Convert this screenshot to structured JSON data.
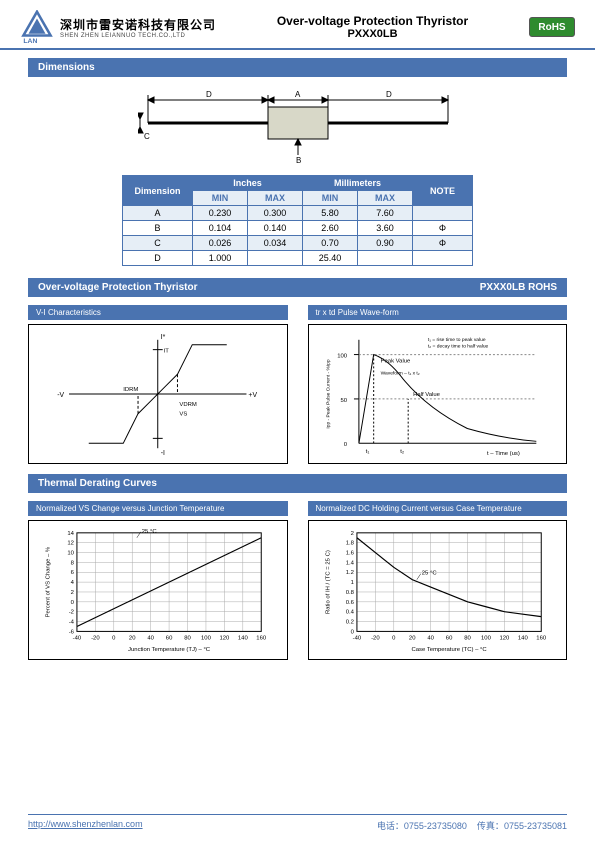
{
  "header": {
    "company_cn": "深圳市雷安诺科技有限公司",
    "company_en": "SHEN ZHEN LEIANNUO TECH.CO.,LTD",
    "logo_text": "LAN",
    "doc_title": "Over-voltage Protection Thyristor",
    "doc_sub": "PXXX0LB",
    "rohs": "RoHS",
    "logo_color": "#4a73b0"
  },
  "dimensions_section": {
    "title": "Dimensions",
    "drawing": {
      "labels": {
        "D_left": "D",
        "D_right": "D",
        "A": "A",
        "B": "B",
        "C": "C"
      },
      "body_fill": "#d8d8c8",
      "line_color": "#000000"
    },
    "table": {
      "headers": {
        "dim": "Dimension",
        "inches": "Inches",
        "mm": "Millimeters",
        "note": "NOTE",
        "min": "MIN",
        "max": "MAX"
      },
      "col_widths": {
        "dim": 70,
        "sub": 55,
        "note": 60
      },
      "rows": [
        {
          "dim": "A",
          "in_min": "0.230",
          "in_max": "0.300",
          "mm_min": "5.80",
          "mm_max": "7.60",
          "note": ""
        },
        {
          "dim": "B",
          "in_min": "0.104",
          "in_max": "0.140",
          "mm_min": "2.60",
          "mm_max": "3.60",
          "note": "Φ"
        },
        {
          "dim": "C",
          "in_min": "0.026",
          "in_max": "0.034",
          "mm_min": "0.70",
          "mm_max": "0.90",
          "note": "Φ"
        },
        {
          "dim": "D",
          "in_min": "1.000",
          "in_max": "",
          "mm_min": "25.40",
          "mm_max": "",
          "note": ""
        }
      ],
      "header_bg": "#4a73b0",
      "header_fg": "#ffffff",
      "subhead_bg": "#e6eef6",
      "subhead_fg": "#4a73b0",
      "row_even_bg": "#e6eef6",
      "row_odd_bg": "#ffffff",
      "border_color": "#4a73b0",
      "font_size": 9
    }
  },
  "product_bar": {
    "left": "Over-voltage Protection Thyristor",
    "right": "PXXX0LB ROHS"
  },
  "vi_chart": {
    "title": "V-I Characteristics",
    "type": "line",
    "axes": {
      "x_label": "+V",
      "neg_x": "-V",
      "y_label": "I*",
      "neg_y": "-I"
    },
    "annotations": [
      "IDRM",
      "IT",
      "VDRM",
      "VS"
    ],
    "line_color": "#000",
    "bg": "#fff"
  },
  "pulse_chart": {
    "title": "tr x td Pulse Wave-form",
    "type": "line",
    "y_label": "Ipp - Peak Pulse Current - %Ipp",
    "x_label": "t – Time (us)",
    "y_ticks": [
      0,
      50,
      100
    ],
    "note_lines": [
      "t₁ = rise time to peak value",
      "t₂ = decay time to half value",
      "Waveform – t₁ x t₂"
    ],
    "labels": [
      "Peak Value",
      "Half Value",
      "t₁",
      "t₂"
    ],
    "grid_color": "#888",
    "line_color": "#000",
    "bg": "#fff"
  },
  "thermal_section": {
    "title": "Thermal Derating Curves"
  },
  "vs_temp_chart": {
    "title": "Normalized VS Change versus Junction Temperature",
    "type": "line",
    "x_label": "Junction Temperature (TJ) – °C",
    "y_label": "Percent of VS Change – %",
    "x_ticks": [
      -40,
      -20,
      0,
      20,
      40,
      60,
      80,
      100,
      120,
      140,
      160
    ],
    "y_ticks": [
      -6,
      -4,
      -2,
      0,
      2,
      4,
      6,
      8,
      10,
      12,
      14
    ],
    "ref_label": "25 °C",
    "data": [
      [
        -40,
        -5
      ],
      [
        160,
        13
      ]
    ],
    "grid_color": "#aaa",
    "line_color": "#000",
    "bg": "#fff",
    "font_size": 6
  },
  "dc_hold_chart": {
    "title": "Normalized DC Holding Current versus Case Temperature",
    "type": "line",
    "x_label": "Case Temperature (TC) – °C",
    "y_label": "Ratio of IH / (TC = 25 C)",
    "x_ticks": [
      -40,
      -20,
      0,
      20,
      40,
      60,
      80,
      100,
      120,
      140,
      160
    ],
    "y_ticks": [
      0.0,
      0.2,
      0.4,
      0.6,
      0.8,
      1.0,
      1.2,
      1.4,
      1.6,
      1.8,
      2.0
    ],
    "ref_label": "25 °C",
    "data": [
      [
        -40,
        1.9
      ],
      [
        -20,
        1.6
      ],
      [
        0,
        1.3
      ],
      [
        20,
        1.05
      ],
      [
        40,
        0.9
      ],
      [
        60,
        0.75
      ],
      [
        80,
        0.6
      ],
      [
        100,
        0.5
      ],
      [
        120,
        0.4
      ],
      [
        140,
        0.35
      ],
      [
        160,
        0.3
      ]
    ],
    "grid_color": "#aaa",
    "line_color": "#000",
    "bg": "#fff",
    "font_size": 6
  },
  "footer": {
    "url_text": "http://www.shenzhenlan.com",
    "phone_label": "电话：",
    "phone": "0755-23735080",
    "fax_label": "传真：",
    "fax": "0755-23735081",
    "color": "#4a73b0"
  }
}
